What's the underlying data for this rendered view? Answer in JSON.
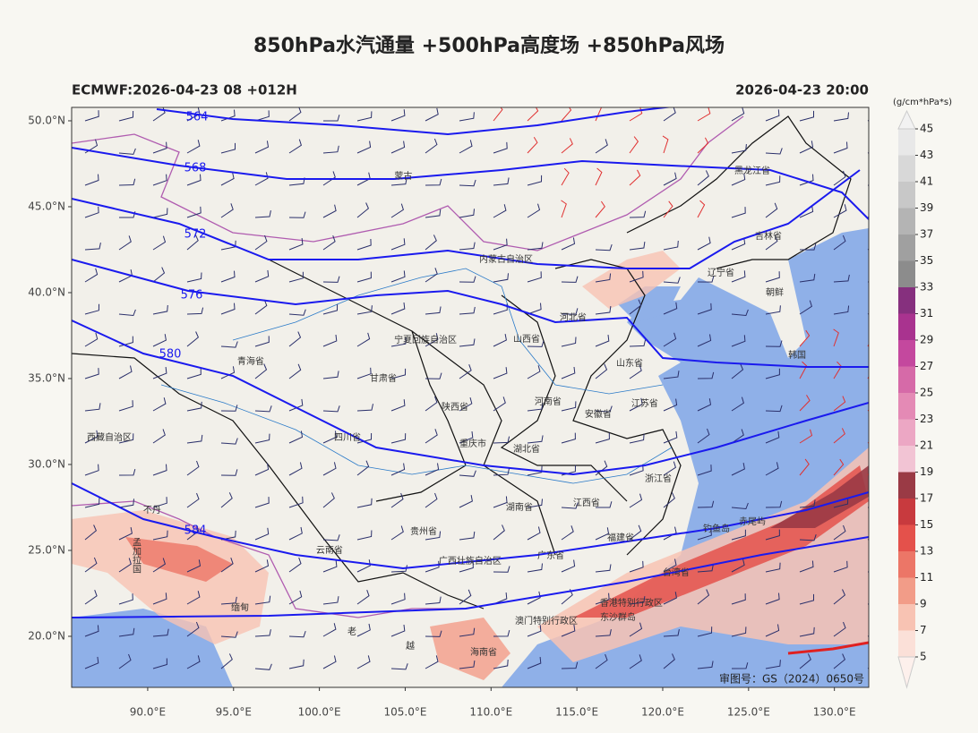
{
  "title": "850hPa水汽通量 +500hPa高度场 +850hPa风场",
  "subtitle_left": "ECMWF:2026-04-23 08 +012H",
  "subtitle_right": "2026-04-23 20:00",
  "approval": "审图号：GS（2024）0650号",
  "map": {
    "lonlim": [
      85.57,
      132.0
    ],
    "latlim": [
      17.03,
      50.78
    ],
    "lat_ticks": [
      {
        "value": 20,
        "label": "20.0°N"
      },
      {
        "value": 25,
        "label": "25.0°N"
      },
      {
        "value": 30,
        "label": "30.0°N"
      },
      {
        "value": 35,
        "label": "35.0°N"
      },
      {
        "value": 40,
        "label": "40.0°N"
      },
      {
        "value": 45,
        "label": "45.0°N"
      },
      {
        "value": 50,
        "label": "50.0°N"
      }
    ],
    "lon_ticks": [
      {
        "value": 90,
        "label": "90.0°E"
      },
      {
        "value": 95,
        "label": "95.0°E"
      },
      {
        "value": 100,
        "label": "100.0°E"
      },
      {
        "value": 105,
        "label": "105.0°E"
      },
      {
        "value": 110,
        "label": "110.0°E"
      },
      {
        "value": 115,
        "label": "115.0°E"
      },
      {
        "value": 120,
        "label": "120.0°E"
      },
      {
        "value": 125,
        "label": "125.0°E"
      },
      {
        "value": 130,
        "label": "130.0°E"
      }
    ],
    "contours": [
      564,
      568,
      572,
      576,
      580,
      584
    ],
    "places": [
      {
        "label": "蒙古",
        "lon": 104.89,
        "lat": 46.77
      },
      {
        "label": "内蒙古自治区",
        "lon": 110.87,
        "lat": 41.93
      },
      {
        "label": "黑龙江省",
        "lon": 125.22,
        "lat": 47.08
      },
      {
        "label": "吉林省",
        "lon": 126.16,
        "lat": 43.28
      },
      {
        "label": "辽宁省",
        "lon": 123.39,
        "lat": 41.14
      },
      {
        "label": "朝鲜",
        "lon": 126.52,
        "lat": 40.0
      },
      {
        "label": "韩国",
        "lon": 127.83,
        "lat": 36.35
      },
      {
        "label": "河北省",
        "lon": 114.78,
        "lat": 38.54
      },
      {
        "label": "山西省",
        "lon": 112.07,
        "lat": 37.29
      },
      {
        "label": "山东省",
        "lon": 118.07,
        "lat": 35.88
      },
      {
        "label": "宁夏回族自治区",
        "lon": 106.18,
        "lat": 37.24
      },
      {
        "label": "甘肃省",
        "lon": 103.72,
        "lat": 35.0
      },
      {
        "label": "青海省",
        "lon": 96.0,
        "lat": 35.99
      },
      {
        "label": "陕西省",
        "lon": 107.9,
        "lat": 33.33
      },
      {
        "label": "河南省",
        "lon": 113.32,
        "lat": 33.65
      },
      {
        "label": "安徽省",
        "lon": 116.24,
        "lat": 32.92
      },
      {
        "label": "江苏省",
        "lon": 118.95,
        "lat": 33.54
      },
      {
        "label": "西藏自治区",
        "lon": 87.76,
        "lat": 31.56
      },
      {
        "label": "四川省",
        "lon": 101.64,
        "lat": 31.56
      },
      {
        "label": "重庆市",
        "lon": 108.94,
        "lat": 31.2
      },
      {
        "label": "湖北省",
        "lon": 112.07,
        "lat": 30.88
      },
      {
        "label": "浙江省",
        "lon": 119.74,
        "lat": 29.17
      },
      {
        "label": "湖南省",
        "lon": 111.65,
        "lat": 27.5
      },
      {
        "label": "江西省",
        "lon": 115.56,
        "lat": 27.76
      },
      {
        "label": "贵州省",
        "lon": 106.07,
        "lat": 26.09
      },
      {
        "label": "云南省",
        "lon": 100.59,
        "lat": 25.0
      },
      {
        "label": "福建省",
        "lon": 117.55,
        "lat": 25.73
      },
      {
        "label": "广西壮族自治区",
        "lon": 108.78,
        "lat": 24.37
      },
      {
        "label": "广东省",
        "lon": 113.48,
        "lat": 24.69
      },
      {
        "label": "台湾省",
        "lon": 120.78,
        "lat": 23.7
      },
      {
        "label": "香港特别行政区",
        "lon": 118.17,
        "lat": 21.93
      },
      {
        "label": "澳门特别行政区",
        "lon": 113.22,
        "lat": 20.88
      },
      {
        "label": "海南省",
        "lon": 109.57,
        "lat": 19.06
      },
      {
        "label": "东沙群岛",
        "lon": 117.39,
        "lat": 21.09
      },
      {
        "label": "缅甸",
        "lon": 95.38,
        "lat": 21.66
      },
      {
        "label": "老",
        "lon": 101.9,
        "lat": 20.26
      },
      {
        "label": "越",
        "lon": 105.29,
        "lat": 19.43
      },
      {
        "label": "钓鱼岛",
        "lon": 123.13,
        "lat": 26.25
      },
      {
        "label": "赤尾屿",
        "lon": 125.22,
        "lat": 26.67
      },
      {
        "label": "不丹",
        "lon": 90.26,
        "lat": 27.34
      },
      {
        "label": "孟加拉国",
        "lon": 89.3,
        "lat": 24.7
      }
    ]
  },
  "colorbar": {
    "unit": "(g/cm*hPa*s)",
    "ticks": [
      5,
      7,
      9,
      11,
      13,
      15,
      17,
      19,
      21,
      23,
      25,
      27,
      29,
      31,
      33,
      35,
      37,
      39,
      41,
      43,
      45
    ],
    "colors": [
      "#fbe0d8",
      "#f8c3b3",
      "#f29c88",
      "#ec7667",
      "#e4514b",
      "#c83a3e",
      "#9a3a45",
      "#f2c4d4",
      "#eca7c4",
      "#e48ab5",
      "#d66aa8",
      "#c4489e",
      "#a9338f",
      "#86307e",
      "#8c8c8c",
      "#a0a0a0",
      "#b4b4b4",
      "#c8c8c8",
      "#d8d8d8",
      "#e8e8e8"
    ]
  }
}
